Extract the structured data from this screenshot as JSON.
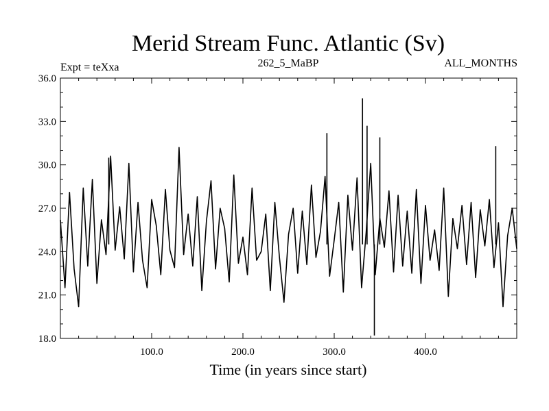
{
  "chart_data": {
    "type": "line",
    "title": "Merid Stream Func. Atlantic (Sv)",
    "subtitle_left": "Expt = teXxa",
    "subtitle_center": "262_5_MaBP",
    "subtitle_right": "ALL_MONTHS",
    "xlabel": "Time (in years since start)",
    "ylabel": "",
    "xlim": [
      0,
      500
    ],
    "ylim": [
      18,
      36
    ],
    "xticks": [
      100,
      200,
      300,
      400
    ],
    "xtick_labels": [
      "100.0",
      "200.0",
      "300.0",
      "400.0"
    ],
    "yticks": [
      18,
      21,
      24,
      27,
      30,
      33,
      36
    ],
    "ytick_labels": [
      "18.0",
      "21.0",
      "24.0",
      "27.0",
      "30.0",
      "33.0",
      "36.0"
    ],
    "grid": false,
    "series": [
      {
        "x": [
          0,
          5,
          10,
          15,
          20,
          25,
          30,
          35,
          40,
          45,
          50,
          55,
          60,
          65,
          70,
          75,
          80,
          85,
          90,
          95,
          100,
          105,
          110,
          115,
          120,
          125,
          130,
          135,
          140,
          145,
          150,
          155,
          160,
          165,
          170,
          175,
          180,
          185,
          190,
          195,
          200,
          205,
          210,
          215,
          220,
          225,
          230,
          235,
          240,
          245,
          250,
          255,
          260,
          265,
          270,
          275,
          280,
          285,
          290,
          295,
          300,
          305,
          310,
          315,
          320,
          325,
          330,
          335,
          340,
          345,
          350,
          355,
          360,
          365,
          370,
          375,
          380,
          385,
          390,
          395,
          400,
          405,
          410,
          415,
          420,
          425,
          430,
          435,
          440,
          445,
          450,
          455,
          460,
          465,
          470,
          475,
          480,
          485,
          490,
          495,
          500
        ],
        "y": [
          26.2,
          21.5,
          28.1,
          22.8,
          20.2,
          28.4,
          23.0,
          29.0,
          21.8,
          26.2,
          23.8,
          30.6,
          24.1,
          27.1,
          23.5,
          30.1,
          22.6,
          27.4,
          23.4,
          21.5,
          27.6,
          25.8,
          22.4,
          28.3,
          24.1,
          22.9,
          31.2,
          23.8,
          26.6,
          23.0,
          27.8,
          21.3,
          26.1,
          28.9,
          22.8,
          27.0,
          25.6,
          21.9,
          29.3,
          23.2,
          25.0,
          22.4,
          28.4,
          23.4,
          24.0,
          26.6,
          21.3,
          27.4,
          23.6,
          20.5,
          25.2,
          27.0,
          22.5,
          26.8,
          23.1,
          28.6,
          23.6,
          25.4,
          29.2,
          22.3,
          24.8,
          27.4,
          21.2,
          27.9,
          24.1,
          29.1,
          21.5,
          25.3,
          30.1,
          22.4,
          26.3,
          24.3,
          28.2,
          22.6,
          27.9,
          23.0,
          26.8,
          22.5,
          28.3,
          21.8,
          27.2,
          23.4,
          25.5,
          22.7,
          28.4,
          20.9,
          26.3,
          24.2,
          27.2,
          23.1,
          27.4,
          22.2,
          26.9,
          24.4,
          27.6,
          22.9,
          26.0,
          20.2,
          25.1,
          27.0,
          24.2
        ]
      }
    ],
    "annotations": [
      {
        "x": 331,
        "y": 34.6
      },
      {
        "x": 336,
        "y": 32.7
      },
      {
        "x": 344,
        "y": 18.2
      },
      {
        "x": 292,
        "y": 32.2
      },
      {
        "x": 350,
        "y": 31.9
      },
      {
        "x": 477,
        "y": 31.3
      },
      {
        "x": 53,
        "y": 30.5
      }
    ]
  }
}
